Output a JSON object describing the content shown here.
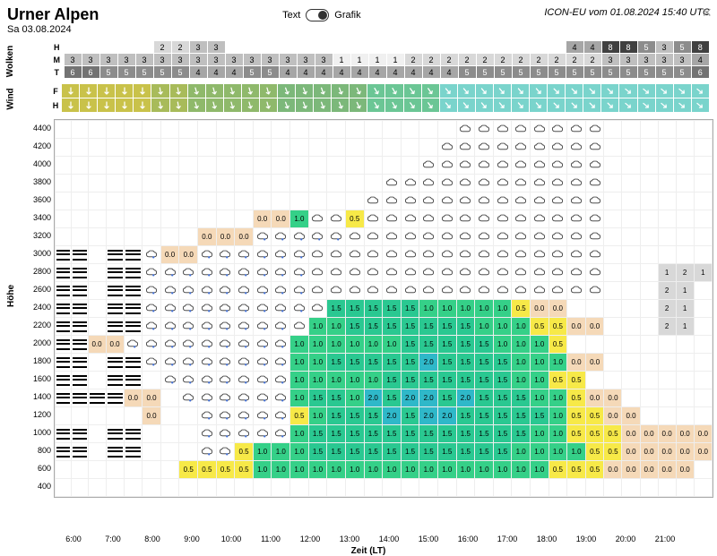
{
  "title": "Urner Alpen",
  "date": "Sa 03.08.2024",
  "toggle": {
    "text_label": "Text",
    "grafik_label": "Grafik"
  },
  "model_info": "ICON-EU vom 01.08.2024 15:40 UTC",
  "section_labels": {
    "clouds": "Wolken",
    "wind": "Wind",
    "height": "Höhe"
  },
  "x_axis_label": "Zeit (LT)",
  "time_hours": [
    "6:00",
    "7:00",
    "8:00",
    "9:00",
    "10:00",
    "11:00",
    "12:00",
    "13:00",
    "14:00",
    "15:00",
    "16:00",
    "17:00",
    "18:00",
    "19:00",
    "20:00",
    "21:00"
  ],
  "cloud_rows": [
    "H",
    "M",
    "T"
  ],
  "cloud_grid": {
    "H": [
      "",
      "",
      "",
      "",
      "",
      "2",
      "2",
      "3",
      "3",
      "",
      "",
      "",
      "",
      "",
      "",
      "",
      "",
      "",
      "",
      "",
      "",
      "",
      "",
      "",
      "",
      "",
      "",
      "",
      "4",
      "4",
      "8",
      "8",
      "5",
      "3",
      "5",
      "8"
    ],
    "M": [
      "3",
      "3",
      "3",
      "3",
      "3",
      "3",
      "3",
      "3",
      "3",
      "3",
      "3",
      "3",
      "3",
      "3",
      "3",
      "1",
      "1",
      "1",
      "1",
      "2",
      "2",
      "2",
      "2",
      "2",
      "2",
      "2",
      "2",
      "2",
      "2",
      "2",
      "3",
      "3",
      "3",
      "3",
      "3",
      "4"
    ],
    "T": [
      "6",
      "6",
      "5",
      "5",
      "5",
      "5",
      "5",
      "4",
      "4",
      "4",
      "5",
      "5",
      "4",
      "4",
      "4",
      "4",
      "4",
      "4",
      "4",
      "4",
      "4",
      "4",
      "5",
      "5",
      "5",
      "5",
      "5",
      "5",
      "5",
      "5",
      "5",
      "5",
      "5",
      "5",
      "5",
      "6"
    ]
  },
  "cloud_gray_scale": {
    "0": "#ffffff",
    "1": "#f0f0f0",
    "2": "#d8d8d8",
    "3": "#bfbfbf",
    "4": "#a6a6a6",
    "5": "#8c8c8c",
    "6": "#737373",
    "7": "#595959",
    "8": "#404040"
  },
  "wind_rows": [
    "F",
    "H"
  ],
  "wind_colors": [
    "#c9c24a",
    "#c9c24a",
    "#c9c24a",
    "#c9c24a",
    "#c9c24a",
    "#a8bb5a",
    "#a8bb5a",
    "#8fb96b",
    "#8fb96b",
    "#8fb96b",
    "#8fb96b",
    "#8fb96b",
    "#7cb87a",
    "#7cb87a",
    "#7cb87a",
    "#7cb87a",
    "#7cb87a",
    "#6bc695",
    "#6bc695",
    "#6bc695",
    "#6bc695",
    "#7ad4cc",
    "#7ad4cc",
    "#7ad4cc",
    "#7ad4cc",
    "#7ad4cc",
    "#7ad4cc",
    "#7ad4cc",
    "#7ad4cc",
    "#7ad4cc",
    "#7ad4cc",
    "#7ad4cc",
    "#7ad4cc",
    "#7ad4cc",
    "#7ad4cc",
    "#7ad4cc"
  ],
  "wind_dirs_F": [
    90,
    90,
    90,
    90,
    90,
    80,
    80,
    75,
    75,
    75,
    75,
    75,
    70,
    70,
    70,
    70,
    65,
    60,
    60,
    55,
    55,
    50,
    50,
    50,
    50,
    50,
    50,
    45,
    45,
    45,
    45,
    40,
    40,
    40,
    40,
    40
  ],
  "wind_dirs_H": [
    90,
    90,
    90,
    90,
    90,
    80,
    80,
    75,
    75,
    75,
    75,
    75,
    70,
    70,
    70,
    70,
    65,
    60,
    60,
    55,
    55,
    50,
    50,
    50,
    50,
    50,
    50,
    45,
    45,
    45,
    45,
    40,
    40,
    40,
    40,
    40
  ],
  "y_ticks": [
    4400,
    4200,
    4000,
    3800,
    3600,
    3400,
    3200,
    3000,
    2800,
    2600,
    2400,
    2200,
    2000,
    1800,
    1600,
    1400,
    1200,
    1000,
    800,
    600,
    400
  ],
  "value_colors": {
    "bg_default": "#ffffff",
    "0.0": "#f5d9b8",
    "0.5": "#f7e948",
    "1.0": "#35d088",
    "1.5": "#2ac891",
    "2.0": "#2fb8c9"
  },
  "heat_grid": [
    [
      "",
      "",
      "",
      "",
      "",
      "",
      "",
      "",
      "",
      "",
      "",
      "",
      "",
      "",
      "",
      "",
      "",
      "",
      "",
      "",
      "",
      "",
      "C",
      "C",
      "C",
      "C",
      "C",
      "C",
      "C",
      "C",
      "",
      "",
      "",
      "",
      "",
      ""
    ],
    [
      "",
      "",
      "",
      "",
      "",
      "",
      "",
      "",
      "",
      "",
      "",
      "",
      "",
      "",
      "",
      "",
      "",
      "",
      "",
      "",
      "",
      "C",
      "C",
      "C",
      "C",
      "C",
      "C",
      "C",
      "C",
      "C",
      "",
      "",
      "",
      "",
      "",
      ""
    ],
    [
      "",
      "",
      "",
      "",
      "",
      "",
      "",
      "",
      "",
      "",
      "",
      "",
      "",
      "",
      "",
      "",
      "",
      "",
      "",
      "",
      "C",
      "C",
      "C",
      "C",
      "C",
      "C",
      "C",
      "C",
      "C",
      "C",
      "",
      "",
      "",
      "",
      "",
      ""
    ],
    [
      "",
      "",
      "",
      "",
      "",
      "",
      "",
      "",
      "",
      "",
      "",
      "",
      "",
      "",
      "",
      "",
      "",
      "",
      "C",
      "C",
      "C",
      "C",
      "C",
      "C",
      "C",
      "C",
      "C",
      "C",
      "C",
      "C",
      "",
      "",
      "",
      "",
      "",
      ""
    ],
    [
      "",
      "",
      "",
      "",
      "",
      "",
      "",
      "",
      "",
      "",
      "",
      "",
      "",
      "",
      "",
      "",
      "",
      "C",
      "C",
      "C",
      "C",
      "C",
      "C",
      "C",
      "C",
      "C",
      "C",
      "C",
      "C",
      "C",
      "",
      "",
      "",
      "",
      "",
      ""
    ],
    [
      "",
      "",
      "",
      "",
      "",
      "",
      "",
      "",
      "",
      "",
      "",
      "0.0",
      "0.0",
      "1.0",
      "C",
      "C",
      "0.5",
      "C",
      "C",
      "C",
      "C",
      "C",
      "C",
      "C",
      "C",
      "C",
      "C",
      "C",
      "C",
      "C",
      "",
      "",
      "",
      "",
      "",
      ""
    ],
    [
      "",
      "",
      "",
      "",
      "",
      "",
      "",
      "",
      "0.0",
      "0.0",
      "0.0",
      "R",
      "R",
      "R",
      "R",
      "R",
      "C",
      "C",
      "C",
      "C",
      "C",
      "C",
      "C",
      "C",
      "C",
      "C",
      "C",
      "C",
      "C",
      "C",
      "",
      "",
      "",
      "",
      "",
      ""
    ],
    [
      "B",
      "B",
      "",
      "B",
      "B",
      "R",
      "0.0",
      "0.0",
      "R",
      "R",
      "R",
      "R",
      "R",
      "R",
      "C",
      "C",
      "C",
      "C",
      "C",
      "C",
      "C",
      "C",
      "C",
      "C",
      "C",
      "C",
      "C",
      "C",
      "C",
      "C",
      "",
      "",
      "",
      "",
      "",
      ""
    ],
    [
      "B",
      "B",
      "",
      "B",
      "B",
      "R",
      "R",
      "R",
      "R",
      "R",
      "R",
      "R",
      "R",
      "R",
      "C",
      "C",
      "C",
      "C",
      "C",
      "C",
      "C",
      "C",
      "C",
      "C",
      "C",
      "C",
      "C",
      "C",
      "C",
      "C",
      "",
      "",
      "",
      "1",
      "2",
      "1"
    ],
    [
      "B",
      "B",
      "",
      "B",
      "B",
      "R",
      "R",
      "R",
      "R",
      "R",
      "R",
      "R",
      "R",
      "R",
      "C",
      "C",
      "C",
      "C",
      "C",
      "C",
      "C",
      "C",
      "C",
      "C",
      "C",
      "C",
      "C",
      "C",
      "C",
      "C",
      "",
      "",
      "",
      "2",
      "1",
      ""
    ],
    [
      "B",
      "B",
      "",
      "B",
      "B",
      "R",
      "R",
      "R",
      "R",
      "R",
      "R",
      "R",
      "R",
      "R",
      "C",
      "1.5",
      "1.5",
      "1.5",
      "1.5",
      "1.5",
      "1.0",
      "1.0",
      "1.0",
      "1.0",
      "1.0",
      "0.5",
      "0.0",
      "0.0",
      "",
      "",
      "",
      "",
      "",
      "2",
      "1",
      ""
    ],
    [
      "B",
      "B",
      "",
      "B",
      "B",
      "R",
      "R",
      "R",
      "R",
      "R",
      "R",
      "R",
      "R",
      "C",
      "1.0",
      "1.0",
      "1.5",
      "1.5",
      "1.5",
      "1.5",
      "1.5",
      "1.5",
      "1.5",
      "1.0",
      "1.0",
      "1.0",
      "0.5",
      "0.5",
      "0.0",
      "0.0",
      "",
      "",
      "",
      "2",
      "1",
      ""
    ],
    [
      "B",
      "B",
      "0.0",
      "0.0",
      "R",
      "R",
      "R",
      "R",
      "R",
      "R",
      "R",
      "R",
      "R",
      "1.0",
      "1.0",
      "1.0",
      "1.0",
      "1.0",
      "1.0",
      "1.5",
      "1.5",
      "1.5",
      "1.5",
      "1.5",
      "1.0",
      "1.0",
      "1.0",
      "0.5",
      "",
      "",
      "",
      "",
      "",
      "",
      "",
      ""
    ],
    [
      "B",
      "B",
      "",
      "B",
      "B",
      "R",
      "R",
      "R",
      "R",
      "R",
      "R",
      "R",
      "R",
      "1.0",
      "1.0",
      "1.5",
      "1.5",
      "1.5",
      "1.5",
      "1.5",
      "2.0",
      "1.5",
      "1.5",
      "1.5",
      "1.5",
      "1.0",
      "1.0",
      "1.0",
      "0.0",
      "0.0",
      "",
      "",
      "",
      "",
      "",
      ""
    ],
    [
      "B",
      "B",
      "",
      "B",
      "B",
      "",
      "R",
      "R",
      "R",
      "R",
      "R",
      "R",
      "R",
      "1.0",
      "1.0",
      "1.0",
      "1.0",
      "1.0",
      "1.5",
      "1.5",
      "1.5",
      "1.5",
      "1.5",
      "1.5",
      "1.5",
      "1.0",
      "1.0",
      "0.5",
      "0.5",
      "",
      "",
      "",
      "",
      "",
      "",
      ""
    ],
    [
      "B",
      "B",
      "B",
      "B",
      "0.0",
      "0.0",
      "",
      "R",
      "R",
      "R",
      "R",
      "R",
      "R",
      "1.0",
      "1.5",
      "1.5",
      "1.0",
      "2.0",
      "1.5",
      "2.0",
      "2.0",
      "1.5",
      "2.0",
      "1.5",
      "1.5",
      "1.5",
      "1.0",
      "1.0",
      "0.5",
      "0.0",
      "0.0",
      "",
      "",
      "",
      "",
      ""
    ],
    [
      "",
      "",
      "",
      "",
      "",
      "0.0",
      "",
      "",
      "R",
      "R",
      "R",
      "R",
      "R",
      "0.5",
      "1.0",
      "1.5",
      "1.5",
      "1.5",
      "2.0",
      "1.5",
      "2.0",
      "2.0",
      "1.5",
      "1.5",
      "1.5",
      "1.5",
      "1.5",
      "1.0",
      "0.5",
      "0.5",
      "0.0",
      "0.0",
      "",
      "",
      "",
      ""
    ],
    [
      "B",
      "B",
      "",
      "B",
      "B",
      "",
      "",
      "",
      "R",
      "R",
      "R",
      "R",
      "R",
      "1.0",
      "1.5",
      "1.5",
      "1.5",
      "1.5",
      "1.5",
      "1.5",
      "1.5",
      "1.5",
      "1.5",
      "1.5",
      "1.5",
      "1.5",
      "1.0",
      "1.0",
      "0.5",
      "0.5",
      "0.5",
      "0.0",
      "0.0",
      "0.0",
      "0.0",
      "0.0"
    ],
    [
      "B",
      "B",
      "",
      "B",
      "B",
      "",
      "",
      "",
      "R",
      "R",
      "0.5",
      "1.0",
      "1.0",
      "1.0",
      "1.5",
      "1.5",
      "1.5",
      "1.5",
      "1.5",
      "1.5",
      "1.5",
      "1.5",
      "1.5",
      "1.5",
      "1.5",
      "1.0",
      "1.0",
      "1.0",
      "1.0",
      "0.5",
      "0.5",
      "0.0",
      "0.0",
      "0.0",
      "0.0",
      "0.0"
    ],
    [
      "",
      "",
      "",
      "",
      "",
      "",
      "",
      "0.5",
      "0.5",
      "0.5",
      "0.5",
      "1.0",
      "1.0",
      "1.0",
      "1.0",
      "1.0",
      "1.0",
      "1.0",
      "1.0",
      "1.0",
      "1.0",
      "1.0",
      "1.0",
      "1.0",
      "1.0",
      "1.0",
      "1.0",
      "0.5",
      "0.5",
      "0.5",
      "0.0",
      "0.0",
      "0.0",
      "0.0",
      "0.0",
      ""
    ],
    [
      "",
      "",
      "",
      "",
      "",
      "",
      "",
      "",
      "",
      "",
      "",
      "",
      "",
      "",
      "",
      "",
      "",
      "",
      "",
      "",
      "",
      "",
      "",
      "",
      "",
      "",
      "",
      "",
      "",
      "",
      "",
      "",
      "",
      "",
      "",
      ""
    ]
  ]
}
